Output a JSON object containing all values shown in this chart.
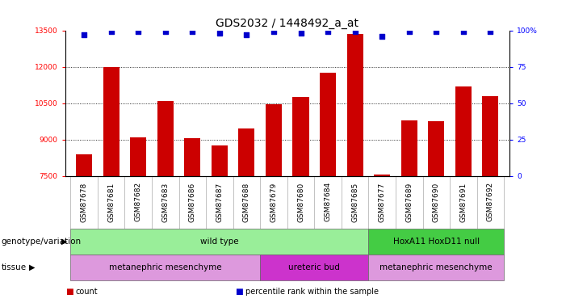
{
  "title": "GDS2032 / 1448492_a_at",
  "samples": [
    "GSM87678",
    "GSM87681",
    "GSM87682",
    "GSM87683",
    "GSM87686",
    "GSM87687",
    "GSM87688",
    "GSM87679",
    "GSM87680",
    "GSM87684",
    "GSM87685",
    "GSM87677",
    "GSM87689",
    "GSM87690",
    "GSM87691",
    "GSM87692"
  ],
  "counts": [
    8400,
    12000,
    9100,
    10600,
    9050,
    8750,
    9450,
    10450,
    10750,
    11750,
    13350,
    7550,
    9800,
    9750,
    11200,
    10800
  ],
  "percentile_ranks": [
    97,
    99,
    99,
    99,
    99,
    98,
    97,
    99,
    98,
    99,
    99,
    96,
    99,
    99,
    99,
    99
  ],
  "ylim_left": [
    7500,
    13500
  ],
  "ylim_right": [
    0,
    100
  ],
  "yticks_left": [
    7500,
    9000,
    10500,
    12000,
    13500
  ],
  "yticks_right": [
    0,
    25,
    50,
    75,
    100
  ],
  "ylabel_right_ticks": [
    "0",
    "25",
    "50",
    "75",
    "100%"
  ],
  "bar_color": "#cc0000",
  "dot_color": "#0000cc",
  "genotype_groups": [
    {
      "label": "wild type",
      "start": 0,
      "end": 10,
      "color": "#99ee99"
    },
    {
      "label": "HoxA11 HoxD11 null",
      "start": 11,
      "end": 15,
      "color": "#44cc44"
    }
  ],
  "tissue_groups": [
    {
      "label": "metanephric mesenchyme",
      "start": 0,
      "end": 6,
      "color": "#dd99dd"
    },
    {
      "label": "ureteric bud",
      "start": 7,
      "end": 10,
      "color": "#cc33cc"
    },
    {
      "label": "metanephric mesenchyme",
      "start": 11,
      "end": 15,
      "color": "#dd99dd"
    }
  ],
  "legend_items": [
    {
      "label": "count",
      "color": "#cc0000"
    },
    {
      "label": "percentile rank within the sample",
      "color": "#0000cc"
    }
  ],
  "row_label_genotype": "genotype/variation",
  "row_label_tissue": "tissue",
  "title_fontsize": 10,
  "tick_fontsize": 6.5,
  "label_fontsize": 7.5,
  "annot_fontsize": 7.5,
  "bar_width": 0.6,
  "xtick_bg": "#d8d8d8"
}
